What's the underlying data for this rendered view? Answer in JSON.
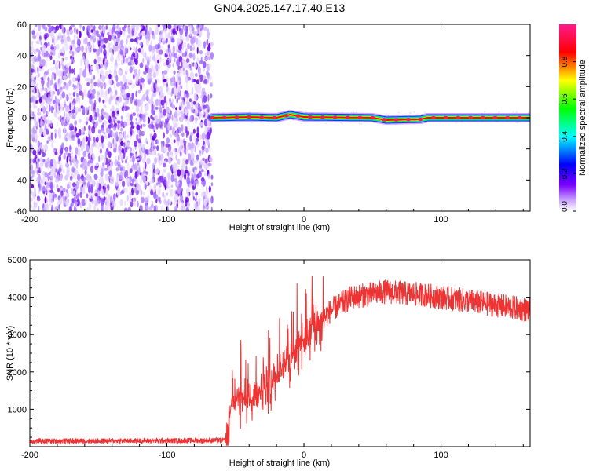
{
  "figure": {
    "title": "GN04.2025.147.17.40.E13"
  },
  "chart_data": [
    {
      "type": "heatmap",
      "xlabel": "Height of straight line (km)",
      "ylabel": "Frequency (Hz)",
      "xlim": [
        -200,
        165
      ],
      "ylim": [
        -60,
        60
      ],
      "x_ticks": [
        -200,
        -100,
        0,
        100
      ],
      "y_ticks": [
        -60,
        -40,
        -20,
        0,
        20,
        40,
        60
      ],
      "colorbar": {
        "label": "Normalized spectral amplitude",
        "range": [
          0,
          1
        ],
        "ticks": [
          0.0,
          0.2,
          0.4,
          0.6,
          0.8
        ],
        "tick_labels": [
          "0.0",
          "0.2",
          "0.4",
          "0.6",
          "0.8"
        ],
        "colors": [
          "#ffffff",
          "#7a00ff",
          "#0000ff",
          "#00ffff",
          "#00ff00",
          "#ffff00",
          "#ff0000",
          "#ff0080"
        ]
      },
      "noise_region_x": [
        -200,
        -67
      ],
      "signal_band": [
        {
          "x": -67,
          "freq": 0
        },
        {
          "x": -40,
          "freq": 0.5
        },
        {
          "x": -20,
          "freq": 0
        },
        {
          "x": -10,
          "freq": 2
        },
        {
          "x": 0,
          "freq": 0.5
        },
        {
          "x": 50,
          "freq": 0
        },
        {
          "x": 60,
          "freq": -1.5
        },
        {
          "x": 85,
          "freq": -1
        },
        {
          "x": 90,
          "freq": 0
        },
        {
          "x": 165,
          "freq": 0
        }
      ],
      "grid": false
    },
    {
      "type": "line",
      "xlabel": "Height of straight line (km)",
      "ylabel": "SNR (10 * v/v)",
      "xlim": [
        -200,
        165
      ],
      "ylim": [
        0,
        5000
      ],
      "x_ticks": [
        -200,
        -100,
        0,
        100
      ],
      "y_ticks": [
        1000,
        2000,
        3000,
        4000,
        5000
      ],
      "series_color": "#ee3333",
      "trend": [
        {
          "x": -200,
          "y": 150
        },
        {
          "x": -100,
          "y": 160
        },
        {
          "x": -57,
          "y": 170
        },
        {
          "x": -52,
          "y": 1300
        },
        {
          "x": -40,
          "y": 1200
        },
        {
          "x": -25,
          "y": 1650
        },
        {
          "x": -10,
          "y": 2400
        },
        {
          "x": 5,
          "y": 3100
        },
        {
          "x": 20,
          "y": 3650
        },
        {
          "x": 35,
          "y": 4000
        },
        {
          "x": 60,
          "y": 4150
        },
        {
          "x": 90,
          "y": 4050
        },
        {
          "x": 120,
          "y": 3900
        },
        {
          "x": 165,
          "y": 3650
        }
      ],
      "grid": false
    }
  ]
}
